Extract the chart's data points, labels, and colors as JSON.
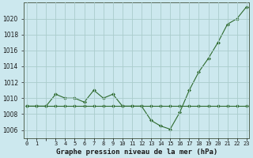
{
  "x": [
    0,
    1,
    2,
    3,
    4,
    5,
    6,
    7,
    8,
    9,
    10,
    11,
    12,
    13,
    14,
    15,
    16,
    17,
    18,
    19,
    20,
    21,
    22,
    23
  ],
  "y_main": [
    1009,
    1009,
    1009,
    1010.5,
    1010,
    1010,
    1009.5,
    1011,
    1010,
    1010.5,
    1009,
    1009,
    1009,
    1007.2,
    1006.5,
    1006.1,
    1008.2,
    1011,
    1013.3,
    1015,
    1017,
    1019.3,
    1020,
    1021.5
  ],
  "y_flat": [
    1009,
    1009,
    1009,
    1009,
    1009,
    1009,
    1009,
    1009,
    1009,
    1009,
    1009,
    1009,
    1009,
    1009,
    1009,
    1009,
    1009,
    1009,
    1009,
    1009,
    1009,
    1009,
    1009,
    1009
  ],
  "line_color": "#2d6a2d",
  "marker_color": "#2d6a2d",
  "bg_color": "#cce8ee",
  "grid_color": "#aacccc",
  "title": "Graphe pression niveau de la mer (hPa)",
  "xlabel_ticks": [
    "0",
    "1",
    "",
    "3",
    "4",
    "5",
    "6",
    "7",
    "8",
    "9",
    "10",
    "11",
    "12",
    "13",
    "14",
    "15",
    "16",
    "17",
    "18",
    "19",
    "20",
    "21",
    "22",
    "23"
  ],
  "yticks": [
    1006,
    1008,
    1010,
    1012,
    1014,
    1016,
    1018,
    1020
  ],
  "ylim": [
    1005.0,
    1022.0
  ],
  "xlim": [
    -0.3,
    23.3
  ]
}
